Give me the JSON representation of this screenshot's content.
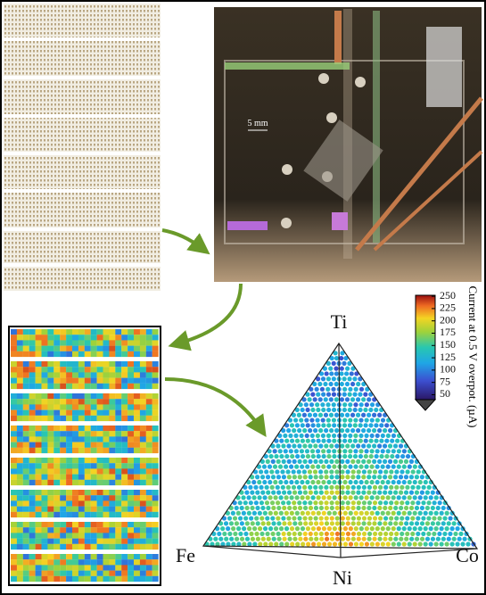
{
  "photo": {
    "scale_label": "5 mm"
  },
  "ternary": {
    "vertices": {
      "top": "Ti",
      "left": "Fe",
      "center": "Ni",
      "right": "Co"
    }
  },
  "colorbar": {
    "label": "Current at 0.5 V overpot. (µA)",
    "lim": [
      40,
      252
    ],
    "ticks": [
      50,
      75,
      100,
      125,
      150,
      175,
      200,
      225,
      250
    ]
  }
}
